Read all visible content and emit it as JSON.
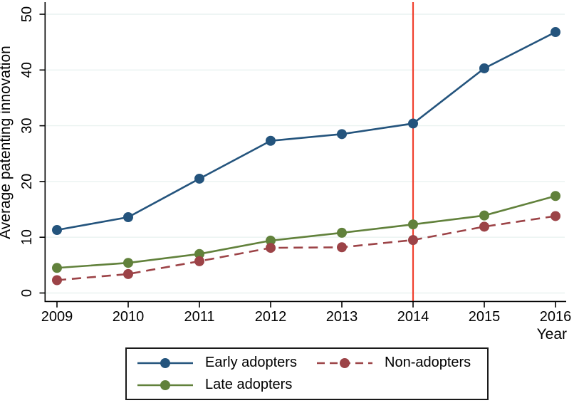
{
  "chart_data": {
    "type": "line",
    "title": "",
    "xlabel": "Year",
    "ylabel": "Average patenting innovation",
    "x": [
      2009,
      2010,
      2011,
      2012,
      2013,
      2014,
      2015,
      2016
    ],
    "xticks": [
      "2009",
      "2010",
      "2011",
      "2012",
      "2013",
      "2014",
      "2015",
      "2016"
    ],
    "yticks": [
      0,
      10,
      20,
      30,
      40,
      50
    ],
    "ylim": [
      0,
      50
    ],
    "grid": "horizontal",
    "legend_position": "bottom",
    "vline": {
      "x": 2014,
      "color": "#f0402e"
    },
    "series": [
      {
        "name": "Early adopters",
        "color": "#24547d",
        "dash": "solid",
        "values": [
          11.3,
          13.6,
          20.5,
          27.3,
          28.5,
          30.4,
          40.3,
          46.8
        ]
      },
      {
        "name": "Late adopters",
        "color": "#61813b",
        "dash": "solid",
        "values": [
          4.5,
          5.4,
          7.0,
          9.4,
          10.8,
          12.3,
          13.9,
          17.4
        ]
      },
      {
        "name": "Non-adopters",
        "color": "#9c4347",
        "dash": "dashed",
        "values": [
          2.3,
          3.4,
          5.7,
          8.1,
          8.2,
          9.5,
          11.9,
          13.8
        ]
      }
    ],
    "colors": {
      "grid": "#e9f2f0",
      "axis": "#000000"
    }
  },
  "legend": {
    "order": [
      0,
      2,
      1
    ]
  }
}
